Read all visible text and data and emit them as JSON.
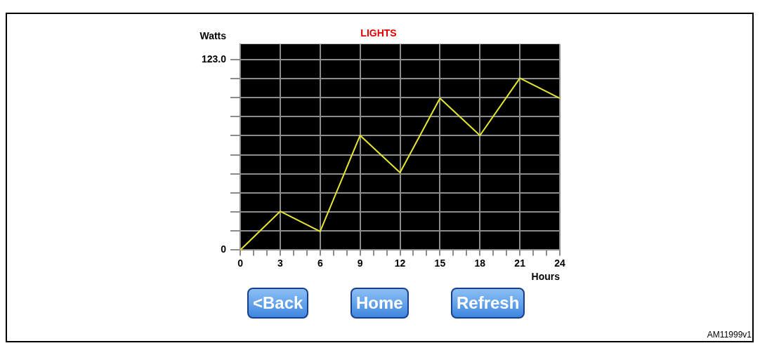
{
  "chart_data": {
    "type": "line",
    "title": "LIGHTS",
    "xlabel": "Hours",
    "ylabel": "Watts",
    "x": [
      0,
      3,
      6,
      9,
      12,
      15,
      18,
      21,
      24
    ],
    "series": [
      {
        "color": "#e6e62e",
        "values": [
          0,
          25,
          12,
          74,
          50,
          98,
          74,
          111,
          98
        ]
      }
    ],
    "xlim": [
      0,
      24
    ],
    "xticks": [
      0,
      {
        "value": 1,
        "label": null
      },
      {
        "value": 2,
        "label": null
      },
      3,
      {
        "value": 4,
        "label": null
      },
      {
        "value": 5,
        "label": null
      },
      6,
      {
        "value": 7,
        "label": null
      },
      {
        "value": 8,
        "label": null
      },
      9,
      {
        "value": 10,
        "label": null
      },
      {
        "value": 11,
        "label": null
      },
      12,
      {
        "value": 13,
        "label": null
      },
      {
        "value": 14,
        "label": null
      },
      15,
      {
        "value": 16,
        "label": null
      },
      {
        "value": 17,
        "label": null
      },
      18,
      {
        "value": 19,
        "label": null
      },
      {
        "value": 20,
        "label": null
      },
      21,
      {
        "value": 22,
        "label": null
      },
      {
        "value": 23,
        "label": null
      },
      24
    ],
    "ylim": [
      0,
      133
    ],
    "yticks": [
      0,
      {
        "value": 12.3,
        "label": null
      },
      {
        "value": 24.6,
        "label": null
      },
      {
        "value": 36.9,
        "label": null
      },
      {
        "value": 49.2,
        "label": null
      },
      {
        "value": 61.5,
        "label": null
      },
      {
        "value": 73.8,
        "label": null
      },
      {
        "value": 86.1,
        "label": null
      },
      {
        "value": 98.4,
        "label": null
      },
      {
        "value": 110.7,
        "label": null
      },
      {
        "value": 123,
        "label": "123.0"
      }
    ],
    "grid": true,
    "legend": false,
    "marker": "none",
    "line_style": "solid",
    "annotations": [
      "<Back",
      "Home",
      "Refresh",
      "AM11999v1"
    ]
  }
}
